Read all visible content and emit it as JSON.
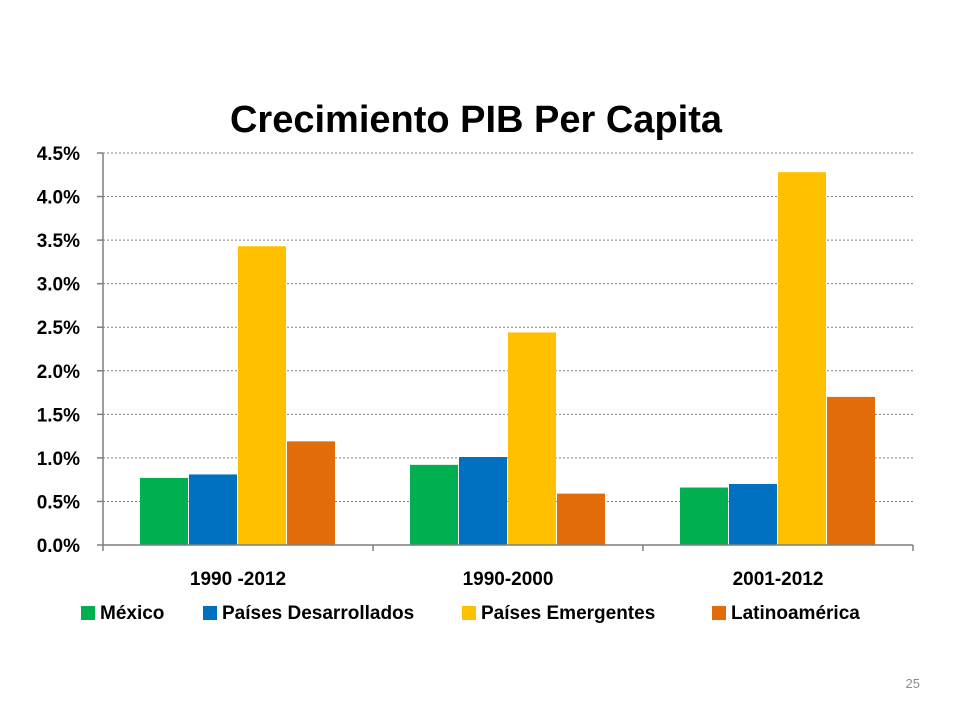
{
  "page": {
    "number": "25"
  },
  "chart_data": {
    "type": "bar",
    "title": "Crecimiento PIB Per Capita",
    "xlabel": "",
    "ylabel": "",
    "categories": [
      "1990 -2012",
      "1990-2000",
      "2001-2012"
    ],
    "yticks": [
      "0.0%",
      "0.5%",
      "1.0%",
      "1.5%",
      "2.0%",
      "2.5%",
      "3.0%",
      "3.5%",
      "4.0%",
      "4.5%"
    ],
    "ylim": [
      0,
      4.5
    ],
    "grid": true,
    "legend_position": "bottom",
    "series": [
      {
        "name": "México",
        "color": "#00b050",
        "values": [
          0.77,
          0.92,
          0.66
        ]
      },
      {
        "name": "Países Desarrollados",
        "color": "#0070c0",
        "values": [
          0.81,
          1.01,
          0.7
        ]
      },
      {
        "name": "Países Emergentes",
        "color": "#ffc000",
        "values": [
          3.43,
          2.44,
          4.28
        ]
      },
      {
        "name": "Latinoamérica",
        "color": "#e36c0a",
        "values": [
          1.19,
          0.59,
          1.7
        ]
      }
    ]
  }
}
